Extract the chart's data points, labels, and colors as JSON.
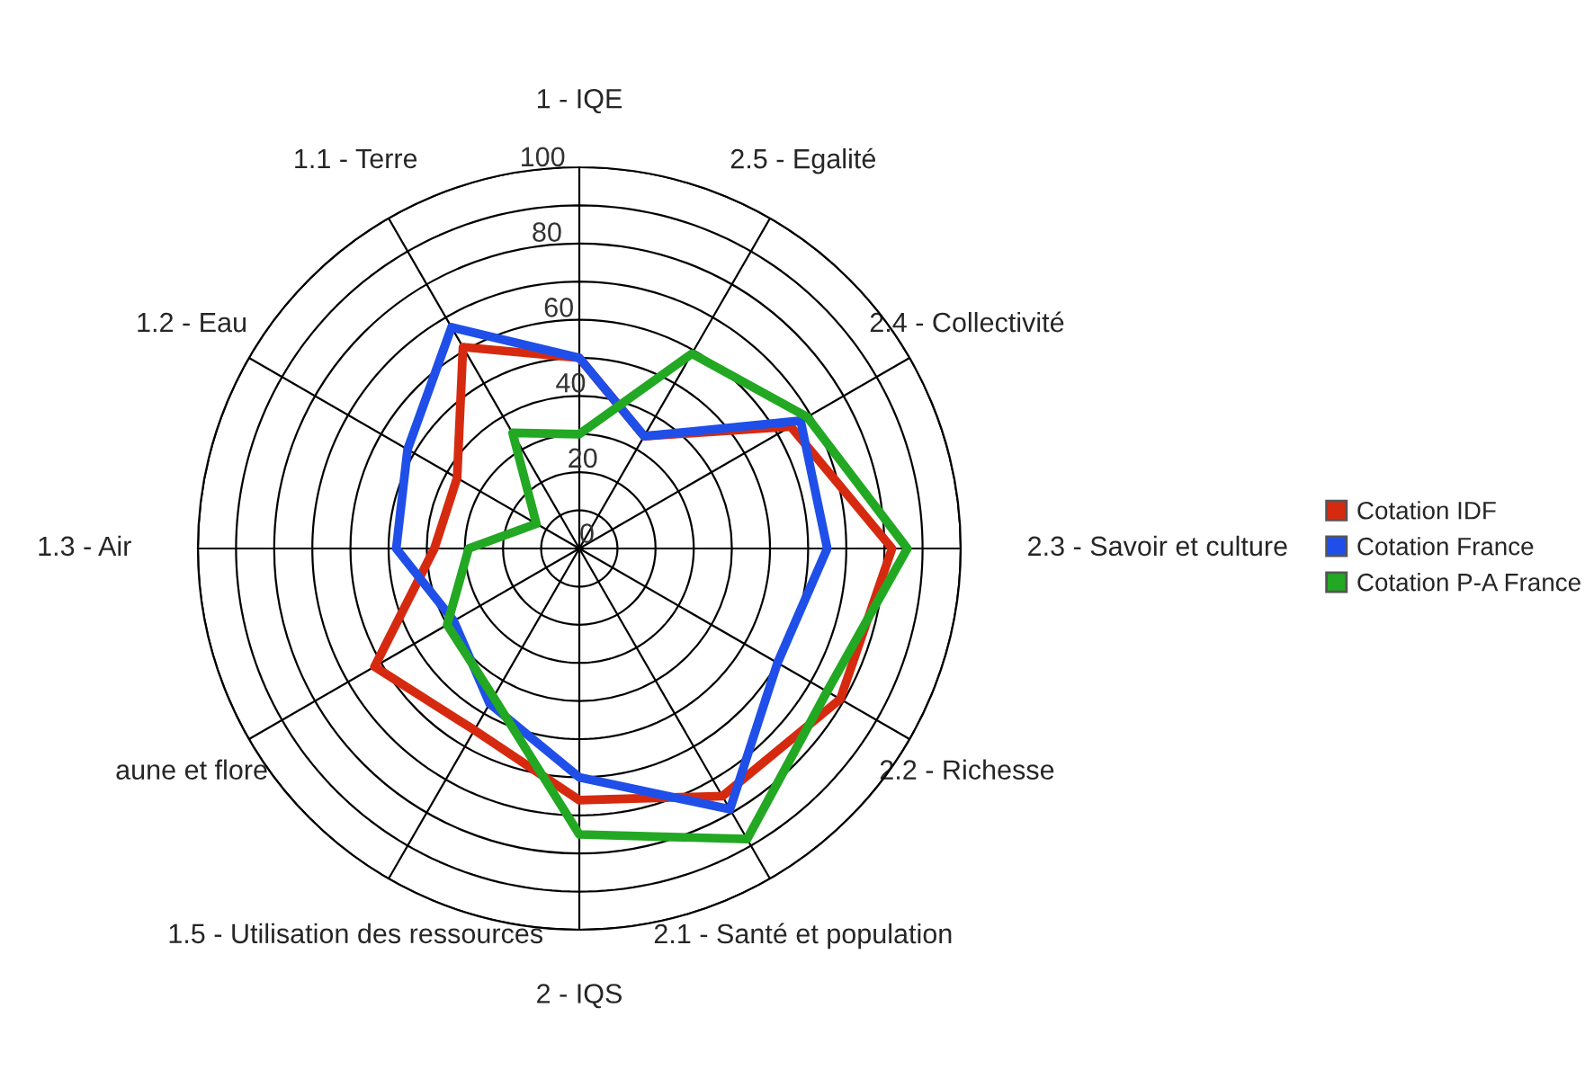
{
  "chart_data": {
    "type": "radar",
    "categories": [
      "1 - IQE",
      "2.5 - Egalité",
      "2.4 - Collectivité",
      "2.3 - Savoir et culture",
      "2.2 - Richesse",
      "2.1 - Santé et population",
      "2 - IQS",
      "1.5 - Utilisation des ressources",
      "aune et flore",
      "1.3 - Air",
      "1.2 - Eau",
      "1.1 - Terre"
    ],
    "series": [
      {
        "name": "Cotation IDF",
        "color": "#d62a10",
        "values": [
          50,
          34,
          64,
          82,
          79,
          75,
          66,
          55,
          62,
          38,
          37,
          61
        ]
      },
      {
        "name": "Cotation France",
        "color": "#1f4fe8",
        "values": [
          50,
          34,
          67,
          65,
          60,
          79,
          60,
          47,
          38,
          48,
          52,
          67
        ]
      },
      {
        "name": "Cotation P-A France",
        "color": "#22a822",
        "values": [
          30,
          59,
          69,
          86,
          75,
          88,
          75,
          45,
          40,
          29,
          13,
          35
        ]
      }
    ],
    "ylim": [
      0,
      100
    ],
    "yticks": [
      0,
      20,
      40,
      60,
      80,
      100
    ],
    "grid": true,
    "legend": "right",
    "line_style": "solid",
    "marker": "none"
  }
}
